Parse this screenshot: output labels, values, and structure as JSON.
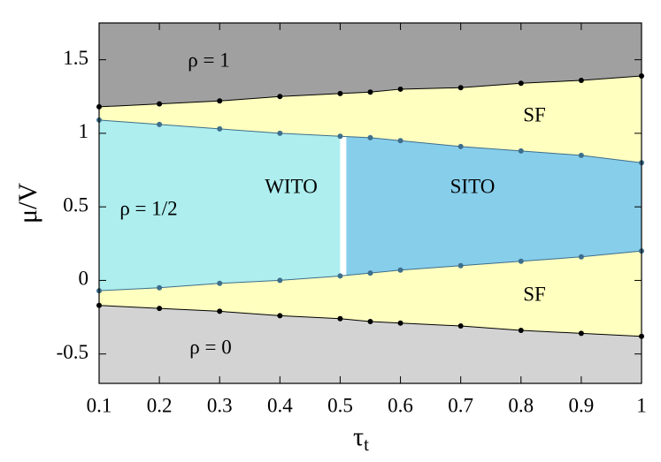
{
  "chart_data": {
    "type": "phase",
    "x_label": {
      "text": "τ",
      "subscript": "t"
    },
    "y_label": "μ/V",
    "x": [
      0.1,
      0.2,
      0.3,
      0.4,
      0.5,
      0.55,
      0.6,
      0.7,
      0.8,
      0.9,
      1.0
    ],
    "series": [
      {
        "color": "#000000",
        "values": [
          1.18,
          1.2,
          1.22,
          1.25,
          1.27,
          1.28,
          1.3,
          1.31,
          1.34,
          1.36,
          1.39
        ]
      },
      {
        "color": "#3d6e8c",
        "values": [
          1.09,
          1.06,
          1.03,
          1.0,
          0.98,
          0.97,
          0.95,
          0.91,
          0.88,
          0.85,
          0.8
        ]
      },
      {
        "color": "#3d6e8c",
        "values": [
          -0.07,
          -0.05,
          -0.02,
          0.0,
          0.03,
          0.05,
          0.07,
          0.1,
          0.13,
          0.16,
          0.2
        ]
      },
      {
        "color": "#000000",
        "values": [
          -0.17,
          -0.19,
          -0.21,
          -0.24,
          -0.26,
          -0.28,
          -0.29,
          -0.31,
          -0.34,
          -0.36,
          -0.38
        ]
      }
    ],
    "wito_sito_boundary": 0.505,
    "fills": {
      "top": "#a0a0a0",
      "sf": "#ffffc0",
      "wito": "#aeeeee",
      "sito": "#87ceeb",
      "bottom": "#d3d3d3",
      "boundary": "#ffffff"
    },
    "annotations": [
      "ρ = 1",
      "SF",
      "ρ = 1/2",
      "WITO",
      "SITO",
      "SF",
      "ρ = 0"
    ],
    "xlim": [
      0.1,
      1.0
    ],
    "xticks": [
      0.1,
      0.2,
      0.3,
      0.4,
      0.5,
      0.6,
      0.7,
      0.8,
      0.9,
      1
    ],
    "ylim": [
      -0.7,
      1.75
    ],
    "yticks": [
      -0.5,
      0,
      0.5,
      1,
      1.5
    ]
  }
}
